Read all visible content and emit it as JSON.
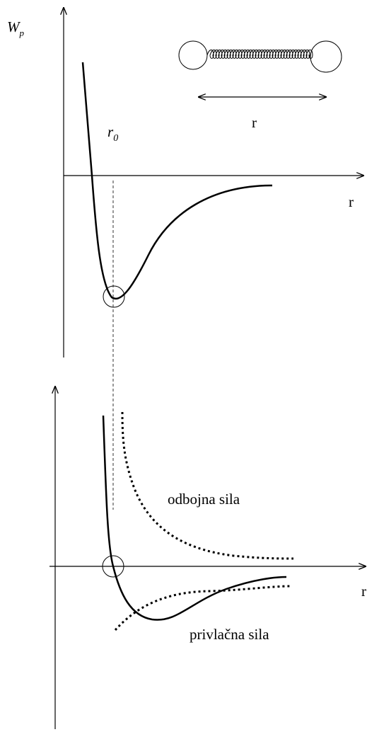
{
  "top_graph": {
    "y_label": {
      "main": "W",
      "sub": "p"
    },
    "x_label": "r",
    "r0_label": {
      "main": "r",
      "sub": "0"
    },
    "spring_label": "r"
  },
  "bottom_graph": {
    "x_label": "r",
    "repulsive_label": "odbojna sila",
    "attractive_label": "privlačna sila"
  }
}
